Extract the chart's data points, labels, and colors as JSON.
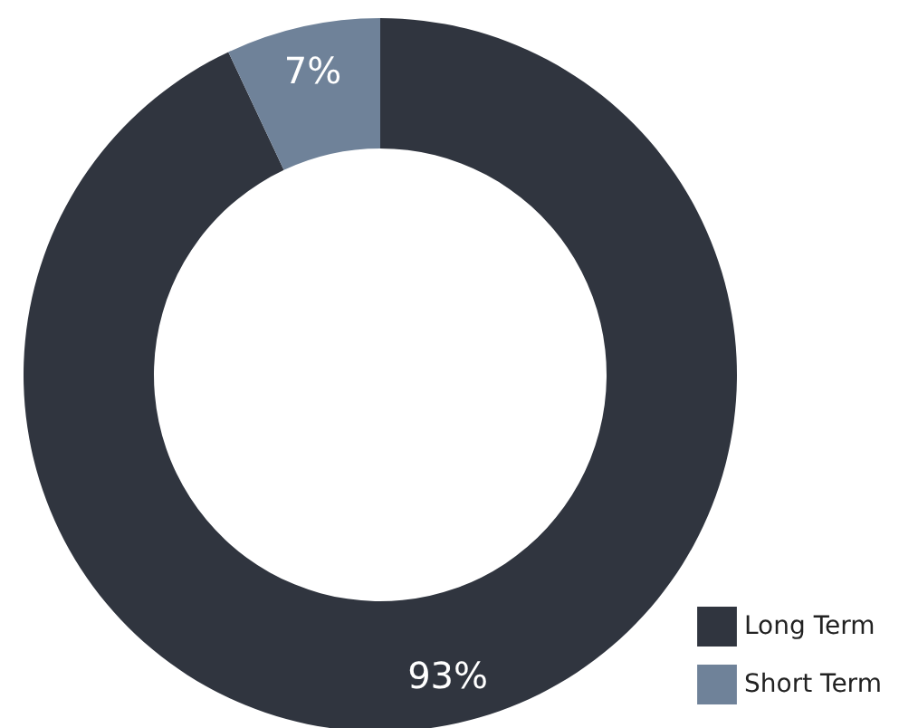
{
  "chart_data": {
    "type": "donut",
    "categories": [
      "Long Term",
      "Short Term"
    ],
    "values": [
      93,
      7
    ],
    "colors": [
      "#30353f",
      "#6f8299"
    ],
    "value_labels": [
      "93%",
      "7%"
    ],
    "legend": "bottom right"
  }
}
